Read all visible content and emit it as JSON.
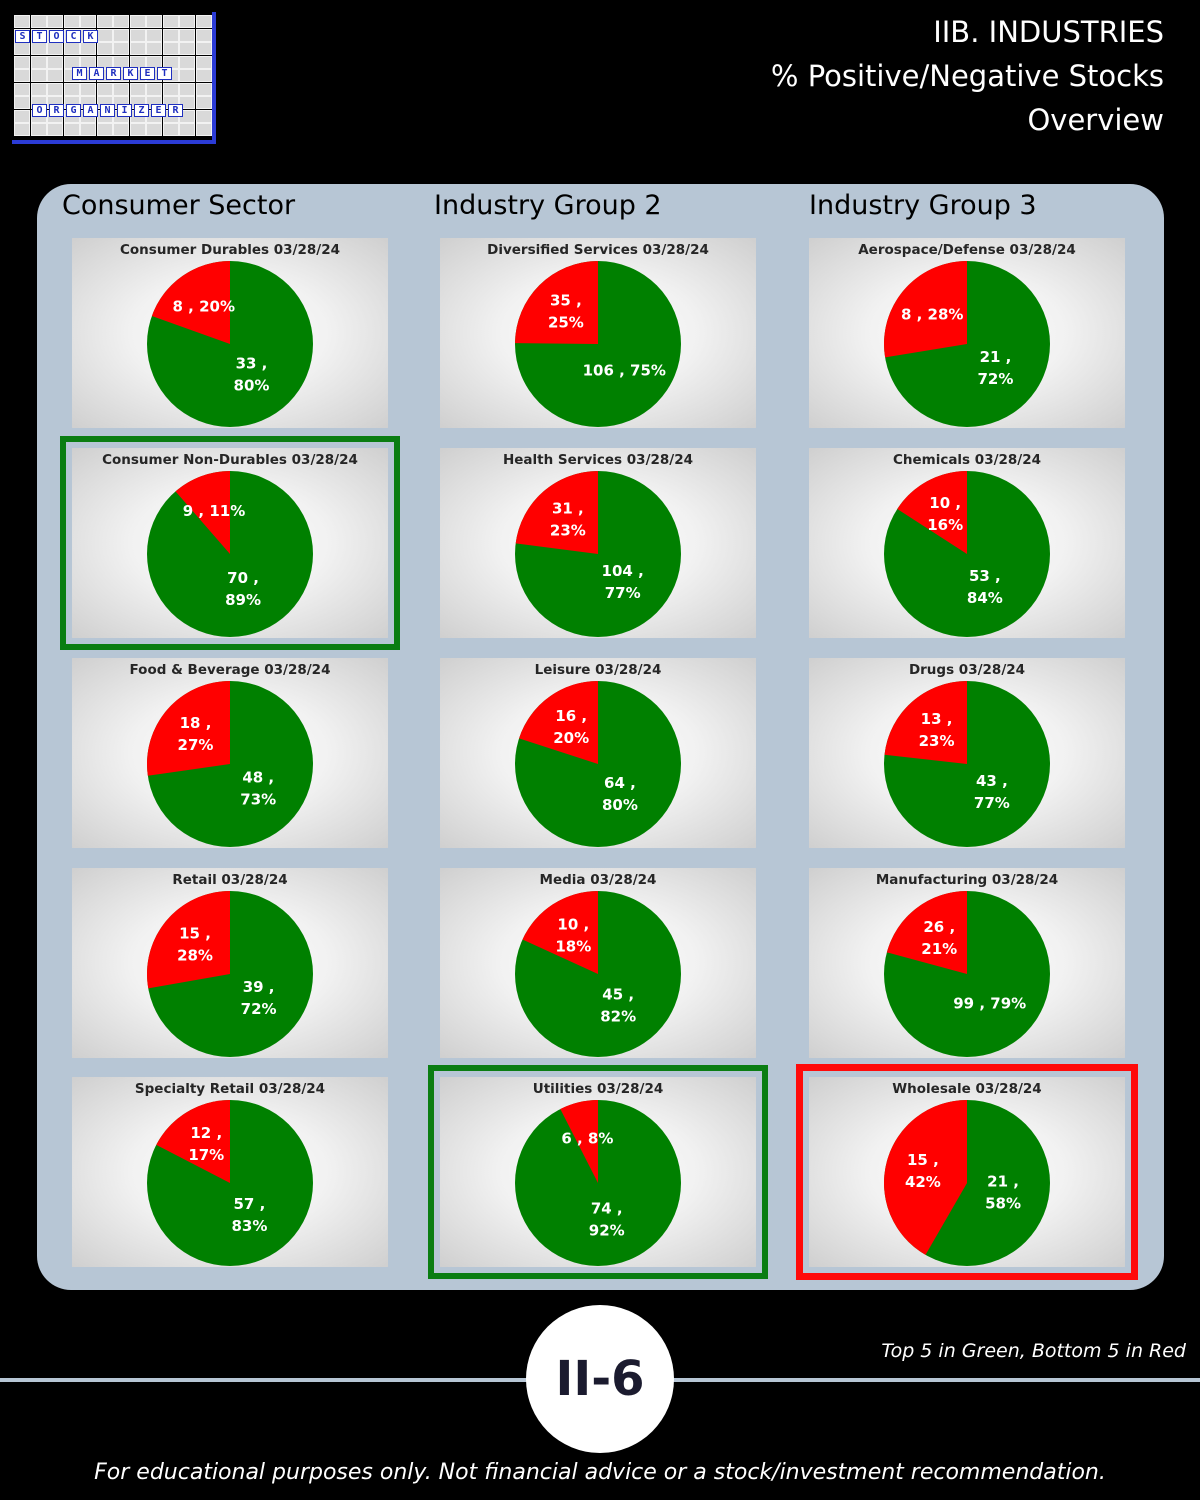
{
  "logo": {
    "words": [
      "STOCK",
      "MARKET",
      "ORGANIZER"
    ]
  },
  "header": {
    "line1": "IIB. INDUSTRIES",
    "line2": "% Positive/Negative Stocks",
    "line3": "Overview"
  },
  "columns": [
    "Consumer Sector",
    "Industry Group 2",
    "Industry Group 3"
  ],
  "colors": {
    "positive": "#008000",
    "negative": "#ff0000",
    "top_outline": "#0a7d12",
    "bottom_outline": "#ff0a0a"
  },
  "chart_data": [
    {
      "type": "pie",
      "title": "Consumer Durables 03/28/24",
      "labels": [
        "negative",
        "positive"
      ],
      "values": [
        8,
        33
      ],
      "percent": [
        20,
        80
      ],
      "data_labels": [
        "8 , 20%",
        "33 ,\n80%"
      ],
      "highlight": "none"
    },
    {
      "type": "pie",
      "title": "Diversified Services 03/28/24",
      "labels": [
        "negative",
        "positive"
      ],
      "values": [
        35,
        106
      ],
      "percent": [
        25,
        75
      ],
      "data_labels": [
        "35 ,\n25%",
        "106 , 75%"
      ],
      "highlight": "none"
    },
    {
      "type": "pie",
      "title": "Aerospace/Defense 03/28/24",
      "labels": [
        "negative",
        "positive"
      ],
      "values": [
        8,
        21
      ],
      "percent": [
        28,
        72
      ],
      "data_labels": [
        "8 , 28%",
        "21 ,\n72%"
      ],
      "highlight": "none"
    },
    {
      "type": "pie",
      "title": "Consumer Non-Durables 03/28/24",
      "labels": [
        "negative",
        "positive"
      ],
      "values": [
        9,
        70
      ],
      "percent": [
        11,
        89
      ],
      "data_labels": [
        "9 , 11%",
        "70 ,\n89%"
      ],
      "highlight": "top"
    },
    {
      "type": "pie",
      "title": "Health Services 03/28/24",
      "labels": [
        "negative",
        "positive"
      ],
      "values": [
        31,
        104
      ],
      "percent": [
        23,
        77
      ],
      "data_labels": [
        "31 ,\n23%",
        "104 ,\n77%"
      ],
      "highlight": "none"
    },
    {
      "type": "pie",
      "title": "Chemicals 03/28/24",
      "labels": [
        "negative",
        "positive"
      ],
      "values": [
        10,
        53
      ],
      "percent": [
        16,
        84
      ],
      "data_labels": [
        "10 ,\n16%",
        "53 ,\n84%"
      ],
      "highlight": "none"
    },
    {
      "type": "pie",
      "title": "Food & Beverage 03/28/24",
      "labels": [
        "negative",
        "positive"
      ],
      "values": [
        18,
        48
      ],
      "percent": [
        27,
        73
      ],
      "data_labels": [
        "18 ,\n27%",
        "48 ,\n73%"
      ],
      "highlight": "none"
    },
    {
      "type": "pie",
      "title": "Leisure 03/28/24",
      "labels": [
        "negative",
        "positive"
      ],
      "values": [
        16,
        64
      ],
      "percent": [
        20,
        80
      ],
      "data_labels": [
        "16 ,\n20%",
        "64 ,\n80%"
      ],
      "highlight": "none"
    },
    {
      "type": "pie",
      "title": "Drugs 03/28/24",
      "labels": [
        "negative",
        "positive"
      ],
      "values": [
        13,
        43
      ],
      "percent": [
        23,
        77
      ],
      "data_labels": [
        "13 ,\n23%",
        "43 ,\n77%"
      ],
      "highlight": "none"
    },
    {
      "type": "pie",
      "title": "Retail 03/28/24",
      "labels": [
        "negative",
        "positive"
      ],
      "values": [
        15,
        39
      ],
      "percent": [
        28,
        72
      ],
      "data_labels": [
        "15 ,\n28%",
        "39 ,\n72%"
      ],
      "highlight": "none"
    },
    {
      "type": "pie",
      "title": "Media 03/28/24",
      "labels": [
        "negative",
        "positive"
      ],
      "values": [
        10,
        45
      ],
      "percent": [
        18,
        82
      ],
      "data_labels": [
        "10 ,\n18%",
        "45 ,\n82%"
      ],
      "highlight": "none"
    },
    {
      "type": "pie",
      "title": "Manufacturing 03/28/24",
      "labels": [
        "negative",
        "positive"
      ],
      "values": [
        26,
        99
      ],
      "percent": [
        21,
        79
      ],
      "data_labels": [
        "26 ,\n21%",
        "99 , 79%"
      ],
      "highlight": "none"
    },
    {
      "type": "pie",
      "title": "Specialty Retail 03/28/24",
      "labels": [
        "negative",
        "positive"
      ],
      "values": [
        12,
        57
      ],
      "percent": [
        17,
        83
      ],
      "data_labels": [
        "12 ,\n17%",
        "57 ,\n83%"
      ],
      "highlight": "none"
    },
    {
      "type": "pie",
      "title": "Utilities 03/28/24",
      "labels": [
        "negative",
        "positive"
      ],
      "values": [
        6,
        74
      ],
      "percent": [
        8,
        92
      ],
      "data_labels": [
        "6 , 8%",
        "74 ,\n92%"
      ],
      "highlight": "top"
    },
    {
      "type": "pie",
      "title": "Wholesale 03/28/24",
      "labels": [
        "negative",
        "positive"
      ],
      "values": [
        15,
        21
      ],
      "percent": [
        42,
        58
      ],
      "data_labels": [
        "15 ,\n42%",
        "21 ,\n58%"
      ],
      "highlight": "bottom"
    }
  ],
  "badge": "II-6",
  "legend_note": "Top 5 in Green, Bottom 5 in Red",
  "disclaimer": "For educational purposes only. Not financial advice or a stock/investment recommendation."
}
